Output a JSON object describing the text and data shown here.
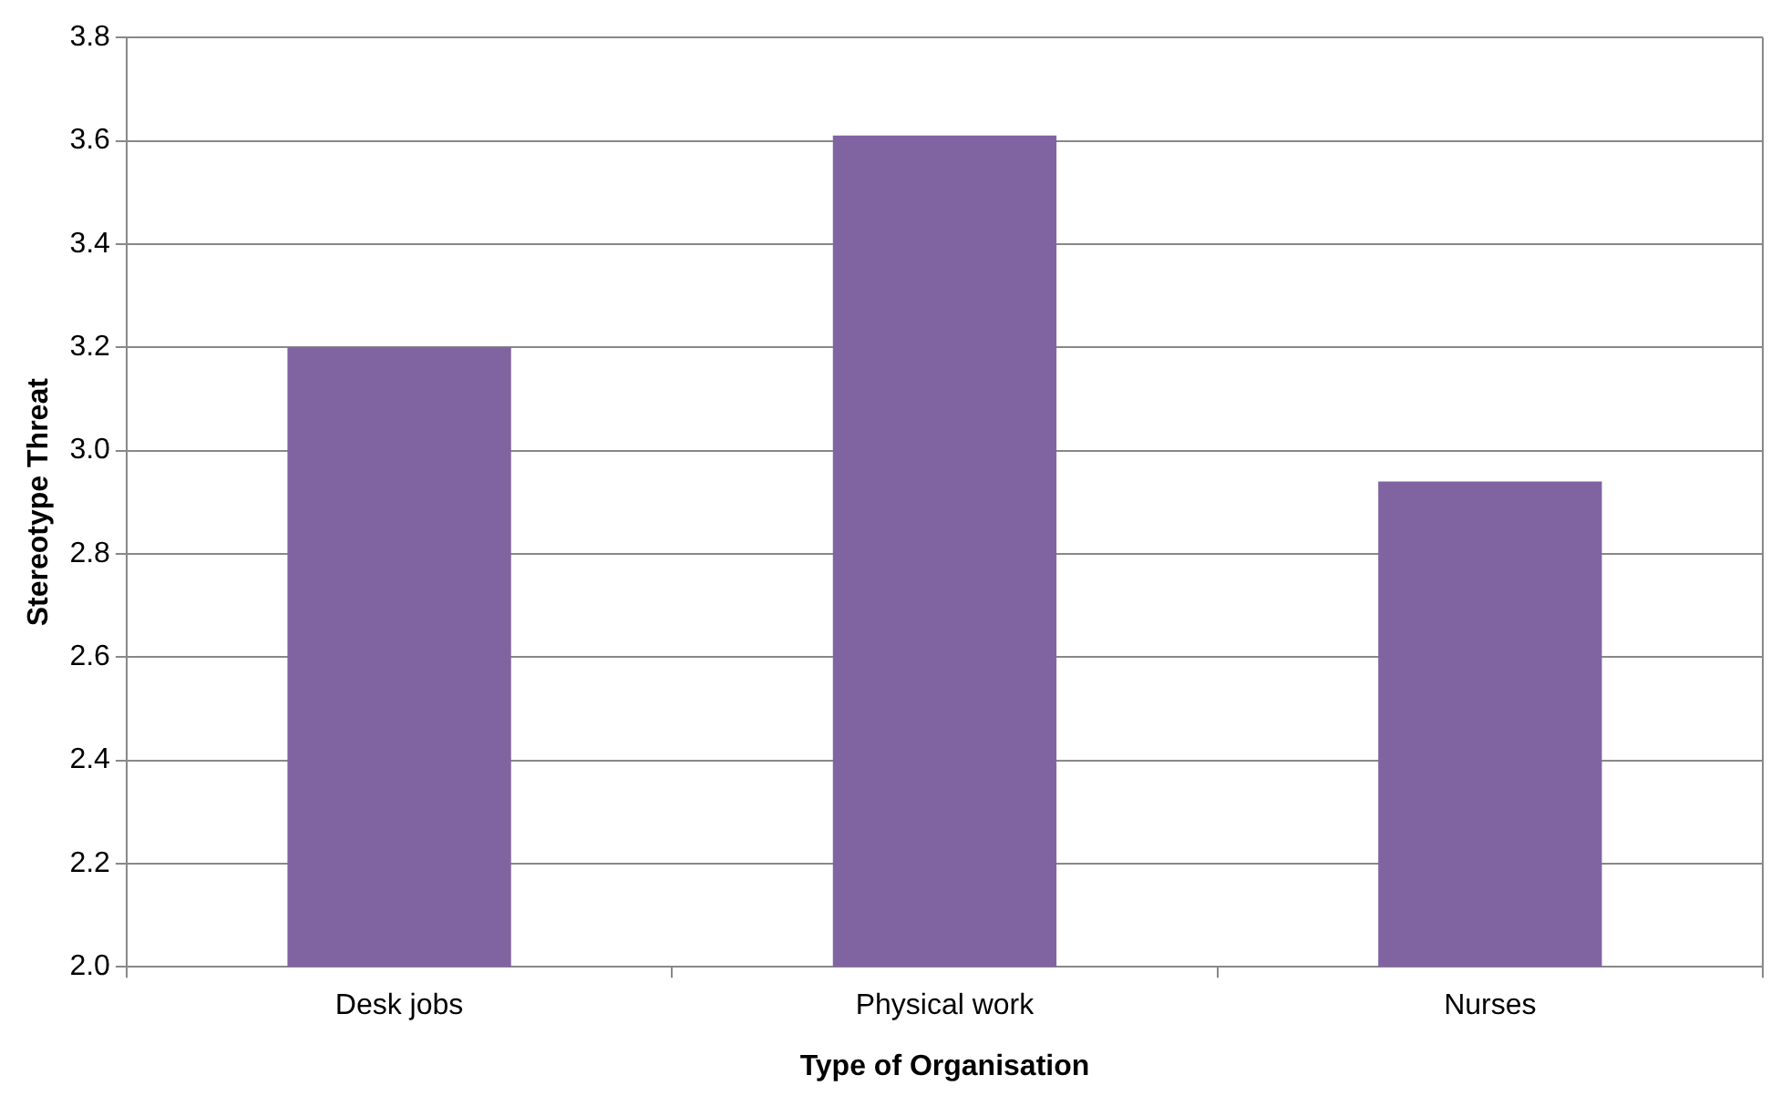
{
  "chart_data": {
    "type": "bar",
    "xlabel": "Type of Organisation",
    "ylabel": "Stereotype Threat",
    "categories": [
      "Desk jobs",
      "Physical work",
      "Nurses"
    ],
    "values": [
      3.2,
      3.61,
      2.94
    ],
    "color": "#8064a2",
    "ylim": [
      2.0,
      3.8
    ],
    "yticks": [
      {
        "value": 2.0,
        "label": "2.0"
      },
      {
        "value": 2.2,
        "label": "2.2"
      },
      {
        "value": 2.4,
        "label": "2.4"
      },
      {
        "value": 2.6,
        "label": "2.6"
      },
      {
        "value": 2.8,
        "label": "2.8"
      },
      {
        "value": 3.0,
        "label": "3.0"
      },
      {
        "value": 3.2,
        "label": "3.2"
      },
      {
        "value": 3.4,
        "label": "3.4"
      },
      {
        "value": 3.6,
        "label": "3.6"
      },
      {
        "value": 3.8,
        "label": "3.8"
      }
    ],
    "grid": "y",
    "legend": false
  }
}
